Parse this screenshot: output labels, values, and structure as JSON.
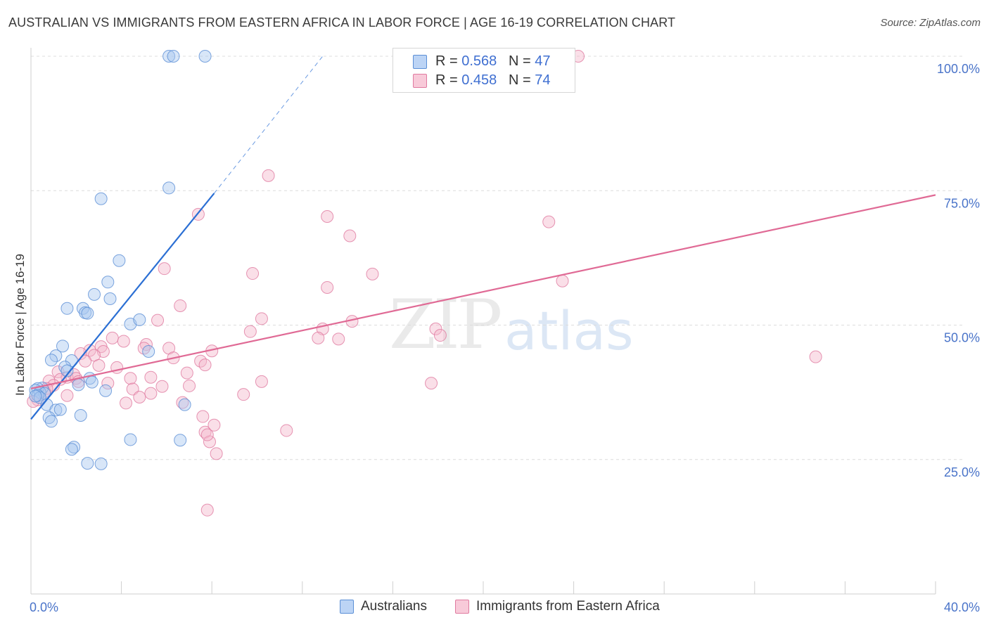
{
  "title": "AUSTRALIAN VS IMMIGRANTS FROM EASTERN AFRICA IN LABOR FORCE | AGE 16-19 CORRELATION CHART",
  "source": "Source: ZipAtlas.com",
  "watermark": {
    "zip": "ZIP",
    "atlas": "atlas"
  },
  "colors": {
    "blue_fill": "#a9c8f0",
    "blue_stroke": "#5b8fd6",
    "blue_line": "#2b6fd4",
    "pink_fill": "#f5b8cc",
    "pink_stroke": "#e07aa0",
    "pink_line": "#e06a95",
    "grid": "#dcdcdc",
    "tick_text": "#4a74c9"
  },
  "legend": {
    "rows": [
      {
        "r_label": "R = ",
        "r_value": "0.568",
        "n_label": "N = ",
        "n_value": "47"
      },
      {
        "r_label": "R = ",
        "r_value": "0.458",
        "n_label": "N = ",
        "n_value": "74"
      }
    ]
  },
  "bottom_legend": [
    {
      "label": "Australians"
    },
    {
      "label": "Immigrants from Eastern Africa"
    }
  ],
  "chart_data": {
    "type": "scatter",
    "title": "AUSTRALIAN VS IMMIGRANTS FROM EASTERN AFRICA IN LABOR FORCE | AGE 16-19 CORRELATION CHART",
    "xlabel": "",
    "ylabel": "In Labor Force | Age 16-19",
    "xlim": [
      0,
      40
    ],
    "ylim": [
      0,
      100
    ],
    "x_tick_labels": [
      "0.0%",
      "40.0%"
    ],
    "y_ticks": [
      25,
      50,
      75,
      100
    ],
    "y_tick_labels": [
      "25.0%",
      "50.0%",
      "75.0%",
      "100.0%"
    ],
    "grid": true,
    "series": [
      {
        "name": "Australians",
        "R": 0.568,
        "N": 47,
        "trend": {
          "x0": 0,
          "y0": 32.5,
          "x1": 8.1,
          "y1": 74.5,
          "dashed_to": {
            "x": 12.9,
            "y": 100
          }
        },
        "points": [
          [
            6.1,
            100
          ],
          [
            6.3,
            100
          ],
          [
            7.7,
            100
          ],
          [
            6.1,
            75.5
          ],
          [
            3.1,
            73.5
          ],
          [
            3.9,
            62
          ],
          [
            3.4,
            58
          ],
          [
            3.5,
            54.9
          ],
          [
            2.8,
            55.7
          ],
          [
            1.6,
            53.1
          ],
          [
            2.3,
            53.1
          ],
          [
            2.4,
            52.3
          ],
          [
            2.5,
            52.2
          ],
          [
            4.4,
            50.2
          ],
          [
            4.8,
            51
          ],
          [
            5.2,
            45.1
          ],
          [
            1.4,
            46.1
          ],
          [
            1.1,
            44.3
          ],
          [
            0.9,
            43.5
          ],
          [
            1.8,
            43.4
          ],
          [
            1.5,
            42.2
          ],
          [
            1.6,
            41.5
          ],
          [
            2.6,
            40.1
          ],
          [
            2.7,
            39.4
          ],
          [
            2.1,
            38.9
          ],
          [
            3.3,
            37.8
          ],
          [
            0.5,
            38.3
          ],
          [
            0.3,
            38.2
          ],
          [
            0.2,
            37.9
          ],
          [
            0.4,
            37.5
          ],
          [
            0.6,
            37.3
          ],
          [
            0.3,
            36.9
          ],
          [
            0.4,
            36.5
          ],
          [
            0.7,
            35.2
          ],
          [
            1.1,
            34.2
          ],
          [
            1.3,
            34.3
          ],
          [
            0.8,
            32.8
          ],
          [
            0.9,
            32.1
          ],
          [
            2.2,
            33.2
          ],
          [
            6.8,
            35.2
          ],
          [
            4.4,
            28.7
          ],
          [
            6.6,
            28.6
          ],
          [
            1.9,
            27.3
          ],
          [
            1.8,
            26.9
          ],
          [
            2.5,
            24.3
          ],
          [
            3.1,
            24.2
          ],
          [
            0.2,
            36.8
          ]
        ]
      },
      {
        "name": "Immigrants from Eastern Africa",
        "R": 0.458,
        "N": 74,
        "trend": {
          "x0": 0,
          "y0": 38.2,
          "x1": 40,
          "y1": 74.2
        },
        "points": [
          [
            24.2,
            100
          ],
          [
            10.5,
            77.8
          ],
          [
            7.4,
            70.6
          ],
          [
            13.1,
            70.2
          ],
          [
            14.1,
            66.6
          ],
          [
            22.9,
            69.2
          ],
          [
            5.9,
            60.5
          ],
          [
            9.8,
            59.6
          ],
          [
            15.1,
            59.5
          ],
          [
            23.5,
            58.2
          ],
          [
            13.1,
            57
          ],
          [
            6.6,
            53.6
          ],
          [
            10.2,
            51.2
          ],
          [
            5.6,
            50.9
          ],
          [
            14.2,
            50.7
          ],
          [
            12.9,
            49.3
          ],
          [
            17.9,
            49.3
          ],
          [
            9.7,
            48.8
          ],
          [
            18.1,
            48.1
          ],
          [
            12.7,
            47.6
          ],
          [
            13.6,
            47.4
          ],
          [
            3.6,
            47.6
          ],
          [
            4.1,
            47
          ],
          [
            5.1,
            46.4
          ],
          [
            3.1,
            46
          ],
          [
            5,
            45.7
          ],
          [
            6.1,
            45.7
          ],
          [
            2.6,
            45.3
          ],
          [
            3.2,
            45.1
          ],
          [
            8.0,
            45.2
          ],
          [
            2.2,
            44.7
          ],
          [
            2.8,
            44.4
          ],
          [
            2.4,
            43.3
          ],
          [
            6.3,
            43.9
          ],
          [
            7.5,
            43.3
          ],
          [
            7.7,
            42.6
          ],
          [
            3.0,
            42.5
          ],
          [
            3.8,
            42.1
          ],
          [
            1.2,
            41.3
          ],
          [
            1.9,
            40.8
          ],
          [
            1.6,
            40.3
          ],
          [
            2.0,
            40.1
          ],
          [
            4.4,
            40.1
          ],
          [
            5.3,
            40.3
          ],
          [
            6.9,
            41.1
          ],
          [
            1.3,
            39.9
          ],
          [
            2.1,
            39.5
          ],
          [
            10.2,
            39.5
          ],
          [
            3.4,
            39.2
          ],
          [
            17.7,
            39.2
          ],
          [
            0.8,
            39.6
          ],
          [
            1.0,
            38.8
          ],
          [
            0.7,
            38.2
          ],
          [
            5.8,
            38.6
          ],
          [
            7.0,
            38.7
          ],
          [
            4.5,
            38.1
          ],
          [
            0.6,
            37.6
          ],
          [
            5.3,
            37.3
          ],
          [
            9.4,
            37.1
          ],
          [
            1.6,
            36.9
          ],
          [
            4.8,
            36.6
          ],
          [
            0.3,
            36.1
          ],
          [
            4.2,
            35.5
          ],
          [
            6.7,
            35.6
          ],
          [
            7.6,
            33
          ],
          [
            7.7,
            30.1
          ],
          [
            11.3,
            30.4
          ],
          [
            8.1,
            31.4
          ],
          [
            7.9,
            28.3
          ],
          [
            8.2,
            26.1
          ],
          [
            7.8,
            29.6
          ],
          [
            0.1,
            35.8
          ],
          [
            34.7,
            44.1
          ],
          [
            7.8,
            15.6
          ]
        ]
      }
    ]
  }
}
